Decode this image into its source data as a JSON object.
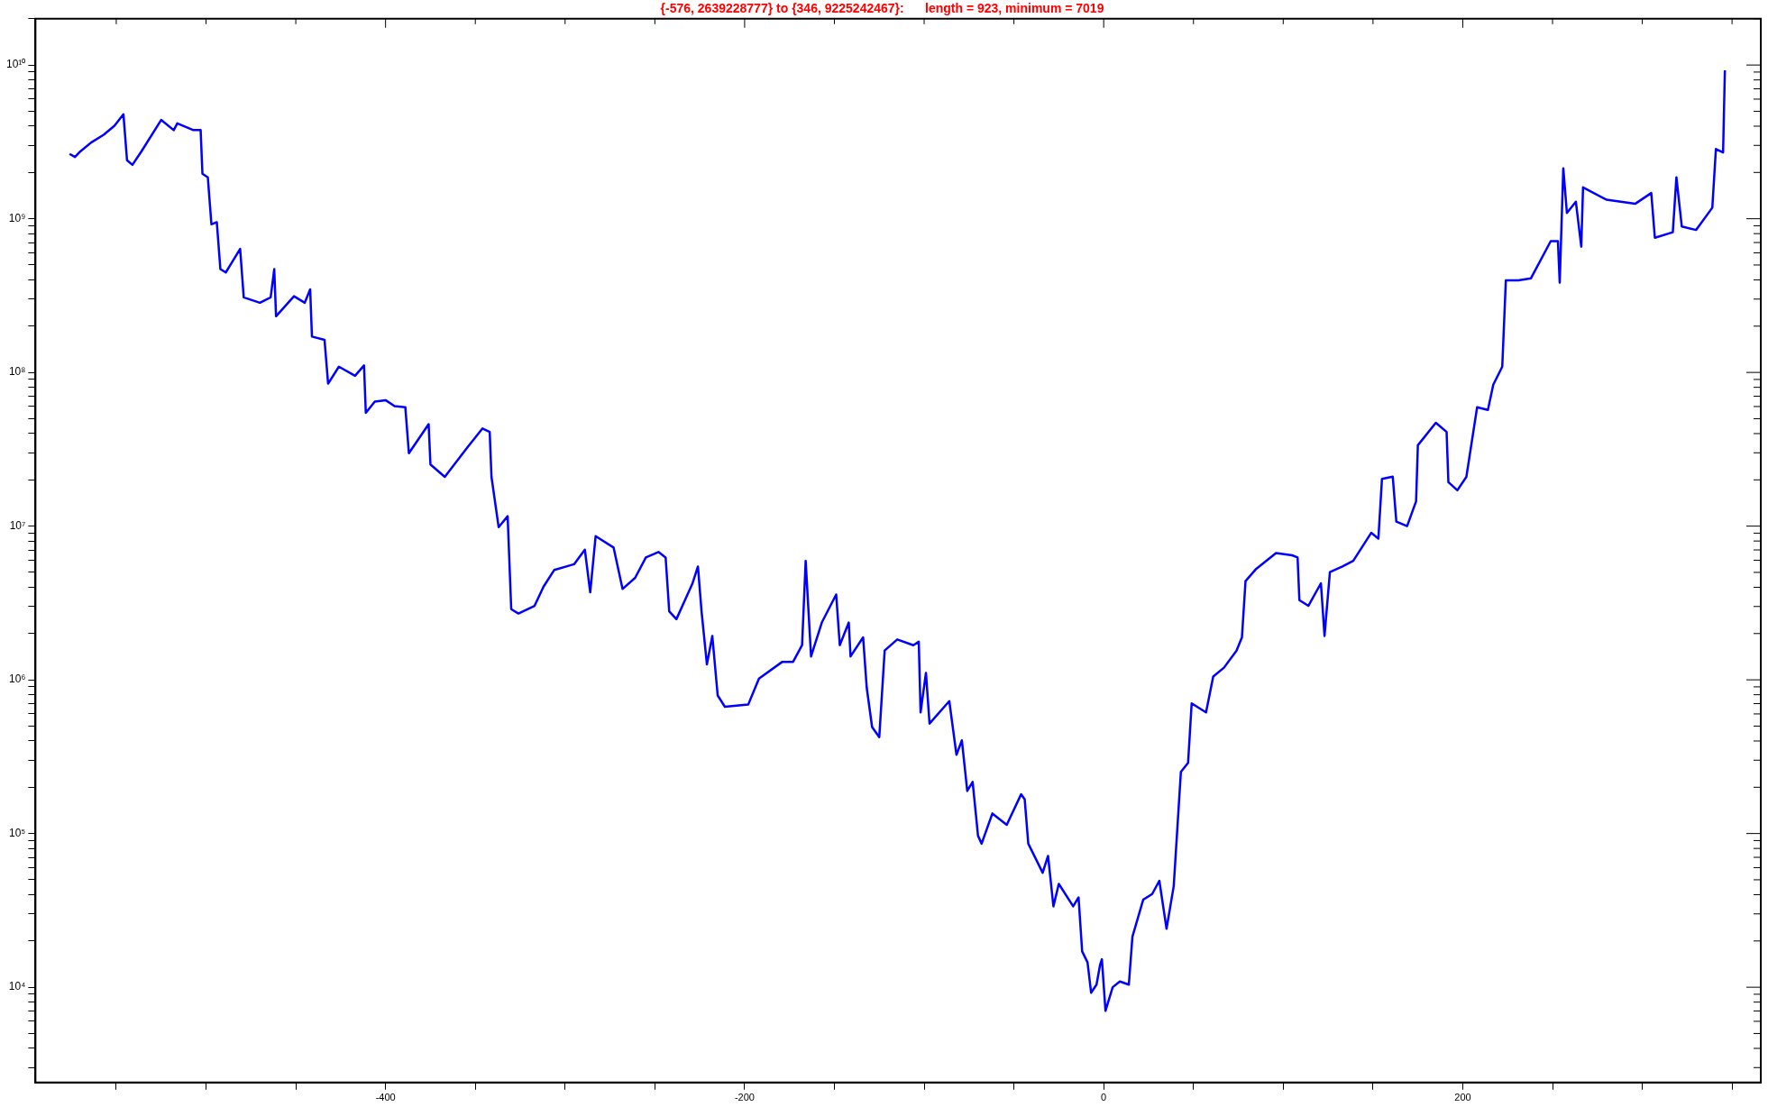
{
  "chart_data": {
    "type": "line",
    "title": "{-576, 2639228777} to {346, 9225242467}:      length = 923, minimum = 7019",
    "log": "y",
    "grid": false,
    "marker": "none",
    "line_style": "solid",
    "xlim": [
      -595,
      366
    ],
    "xticks": [
      {
        "value": -550,
        "label": null
      },
      {
        "value": -500,
        "label": null
      },
      {
        "value": -450,
        "label": null
      },
      -400,
      {
        "value": -350,
        "label": null
      },
      {
        "value": -300,
        "label": null
      },
      {
        "value": -250,
        "label": null
      },
      -200,
      {
        "value": -150,
        "label": null
      },
      {
        "value": -100,
        "label": null
      },
      {
        "value": -50,
        "label": null
      },
      0,
      {
        "value": 50,
        "label": null
      },
      {
        "value": 100,
        "label": null
      },
      {
        "value": 150,
        "label": null
      },
      200,
      {
        "value": 250,
        "label": null
      },
      {
        "value": 300,
        "label": null
      },
      {
        "value": 350,
        "label": null
      }
    ],
    "ylim": [
      2400,
      20000000000
    ],
    "yticks": [
      {
        "value": 3000,
        "label": null
      },
      {
        "value": 4000,
        "label": null
      },
      {
        "value": 5000,
        "label": null
      },
      {
        "value": 6000,
        "label": null
      },
      {
        "value": 7000,
        "label": null
      },
      {
        "value": 8000,
        "label": null
      },
      {
        "value": 9000,
        "label": null
      },
      {
        "value": 10000,
        "label": "10⁴"
      },
      {
        "value": 20000,
        "label": null
      },
      {
        "value": 30000,
        "label": null
      },
      {
        "value": 40000,
        "label": null
      },
      {
        "value": 50000,
        "label": null
      },
      {
        "value": 60000,
        "label": null
      },
      {
        "value": 70000,
        "label": null
      },
      {
        "value": 80000,
        "label": null
      },
      {
        "value": 90000,
        "label": null
      },
      {
        "value": 100000,
        "label": "10⁵"
      },
      {
        "value": 200000,
        "label": null
      },
      {
        "value": 300000,
        "label": null
      },
      {
        "value": 400000,
        "label": null
      },
      {
        "value": 500000,
        "label": null
      },
      {
        "value": 600000,
        "label": null
      },
      {
        "value": 700000,
        "label": null
      },
      {
        "value": 800000,
        "label": null
      },
      {
        "value": 900000,
        "label": null
      },
      {
        "value": 1000000,
        "label": "10⁶"
      },
      {
        "value": 2000000,
        "label": null
      },
      {
        "value": 3000000,
        "label": null
      },
      {
        "value": 4000000,
        "label": null
      },
      {
        "value": 5000000,
        "label": null
      },
      {
        "value": 6000000,
        "label": null
      },
      {
        "value": 7000000,
        "label": null
      },
      {
        "value": 8000000,
        "label": null
      },
      {
        "value": 9000000,
        "label": null
      },
      {
        "value": 10000000,
        "label": "10⁷"
      },
      {
        "value": 20000000,
        "label": null
      },
      {
        "value": 30000000,
        "label": null
      },
      {
        "value": 40000000,
        "label": null
      },
      {
        "value": 50000000,
        "label": null
      },
      {
        "value": 60000000,
        "label": null
      },
      {
        "value": 70000000,
        "label": null
      },
      {
        "value": 80000000,
        "label": null
      },
      {
        "value": 90000000,
        "label": null
      },
      {
        "value": 100000000,
        "label": "10⁸"
      },
      {
        "value": 200000000,
        "label": null
      },
      {
        "value": 300000000,
        "label": null
      },
      {
        "value": 400000000,
        "label": null
      },
      {
        "value": 500000000,
        "label": null
      },
      {
        "value": 600000000,
        "label": null
      },
      {
        "value": 700000000,
        "label": null
      },
      {
        "value": 800000000,
        "label": null
      },
      {
        "value": 900000000,
        "label": null
      },
      {
        "value": 1000000000,
        "label": "10⁹"
      },
      {
        "value": 2000000000,
        "label": null
      },
      {
        "value": 3000000000,
        "label": null
      },
      {
        "value": 4000000000,
        "label": null
      },
      {
        "value": 5000000000,
        "label": null
      },
      {
        "value": 6000000000,
        "label": null
      },
      {
        "value": 7000000000,
        "label": null
      },
      {
        "value": 8000000000,
        "label": null
      },
      {
        "value": 9000000000,
        "label": null
      },
      {
        "value": 10000000000,
        "label": "10¹⁰"
      },
      {
        "value": 20000000000,
        "label": null
      }
    ],
    "series": [
      {
        "color": "#0000ff",
        "x": [
          -576,
          -573,
          -570,
          -564,
          -557,
          -551,
          -546,
          -544,
          -541,
          -536,
          -525,
          -518,
          -516,
          -507,
          -503,
          -502,
          -499,
          -497,
          -494,
          -492,
          -489,
          -481,
          -479,
          -470,
          -464,
          -462,
          -461,
          -451,
          -445,
          -442,
          -441,
          -434,
          -432,
          -426,
          -417,
          -412,
          -411,
          -406,
          -400,
          -395,
          -389,
          -387,
          -376,
          -375,
          -367,
          -354,
          -346,
          -342,
          -341,
          -337,
          -332,
          -330,
          -326,
          -317,
          -312,
          -306,
          -295,
          -289,
          -286,
          -283,
          -273,
          -268,
          -261,
          -255,
          -248,
          -244,
          -242,
          -238,
          -229,
          -226,
          -224,
          -221,
          -218,
          -215,
          -211,
          -198,
          -192,
          -179,
          -173,
          -168,
          -166,
          -163,
          -157,
          -149,
          -147,
          -142,
          -141,
          -134,
          -132,
          -129,
          -125,
          -122,
          -115,
          -106,
          -103,
          -102,
          -99,
          -97,
          -86,
          -82,
          -79,
          -76,
          -73,
          -70,
          -68,
          -62,
          -54,
          -46,
          -44,
          -42,
          -34,
          -31,
          -28,
          -25,
          -17,
          -14,
          -12,
          -9,
          -7,
          -4,
          -2,
          -1,
          1,
          5,
          9,
          14,
          16,
          22,
          27,
          31,
          35,
          39,
          43,
          47,
          49,
          57,
          61,
          67,
          74,
          77,
          79,
          85,
          96,
          105,
          108,
          109,
          114,
          121,
          123,
          126,
          133,
          139,
          149,
          153,
          155,
          161,
          163,
          169,
          174,
          175,
          185,
          191,
          192,
          197,
          202,
          208,
          214,
          217,
          222,
          224,
          231,
          238,
          249,
          253,
          254,
          256,
          258,
          263,
          266,
          267,
          280,
          296,
          305,
          307,
          317,
          319,
          322,
          330,
          339,
          341,
          345,
          346
        ],
        "values": [
          2639228777,
          2520000000,
          2740000000,
          3130000000,
          3520000000,
          4030000000,
          4780000000,
          2400000000,
          2240000000,
          2740000000,
          4390000000,
          3770000000,
          4170000000,
          3770000000,
          3770000000,
          1960000000,
          1860000000,
          920000000,
          950000000,
          470000000,
          447000000,
          636000000,
          308000000,
          284000000,
          308000000,
          470000000,
          232000000,
          313000000,
          284000000,
          347000000,
          171000000,
          163000000,
          84500000,
          109000000,
          95000000,
          111000000,
          54600000,
          64600000,
          66000000,
          60400000,
          59400000,
          29800000,
          46100000,
          25200000,
          20900000,
          33000000,
          43200000,
          41000000,
          20900000,
          9840000,
          11600000,
          2880000,
          2700000,
          3030000,
          4040000,
          5190000,
          5650000,
          7030000,
          3710000,
          8600000,
          7260000,
          3900000,
          4610000,
          6250000,
          6790000,
          6250000,
          2790000,
          2480000,
          4250000,
          5460000,
          2790000,
          1260000,
          1930000,
          791000,
          668000,
          690000,
          1020000,
          1310000,
          1310000,
          1680000,
          5940000,
          1420000,
          2360000,
          3590000,
          1680000,
          2360000,
          1420000,
          1890000,
          890000,
          493000,
          424000,
          1550000,
          1830000,
          1680000,
          1770000,
          614000,
          1110000,
          519000,
          727000,
          325000,
          404000,
          189000,
          217000,
          96700,
          85900,
          135000,
          114000,
          180000,
          167000,
          85900,
          55600,
          71500,
          33600,
          47000,
          33600,
          38400,
          17100,
          14500,
          9200,
          10400,
          14000,
          15200,
          7019,
          10000,
          10900,
          10400,
          21300,
          37100,
          40400,
          49300,
          24000,
          45400,
          252000,
          288000,
          703000,
          614000,
          1050000,
          1200000,
          1550000,
          1890000,
          4390000,
          5280000,
          6680000,
          6460000,
          6250000,
          3300000,
          3030000,
          4250000,
          1930000,
          5020000,
          5460000,
          5940000,
          9040000,
          8300000,
          20300000,
          21000000,
          10700000,
          10000000,
          14500000,
          33600000,
          47000000,
          41000000,
          19300000,
          17100000,
          20900000,
          59400000,
          57000000,
          83200000,
          109000000,
          397000000,
          397000000,
          410000000,
          715000000,
          715000000,
          384000000,
          2130000000,
          1090000000,
          1290000000,
          658000000,
          1600000000,
          1330000000,
          1250000000,
          1470000000,
          752000000,
          817000000,
          1860000000,
          889000000,
          845000000,
          1180000000,
          2840000000,
          2700000000,
          9225242467
        ]
      }
    ]
  }
}
